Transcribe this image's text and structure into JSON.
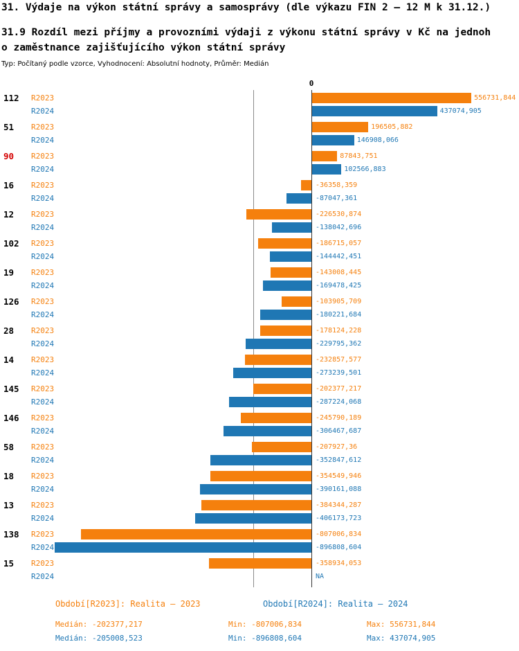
{
  "title": "31. Výdaje na výkon státní správy a samosprávy (dle výkazu FIN 2 – 12 M k 31.12.)",
  "subtitle_lines": [
    "31.9 Rozdíl mezi příjmy a provozními výdaji z výkonu státní správy v Kč na jednoh",
    "o zaměstnance zajišťujícího výkon státní správy"
  ],
  "meta": "Typ: Počítaný podle vzorce, Vyhodnocení: Absolutní hodnoty, Průměr: Medián",
  "axis": {
    "zero_label": "0"
  },
  "colors": {
    "r2023": "#f5800d",
    "r2024": "#1f77b4",
    "category": "#000000",
    "highlight_category": "#d40000",
    "zero_line": "#333333",
    "median_line": "#8a8a8a"
  },
  "chart_data": {
    "type": "bar",
    "orientation": "horizontal",
    "title": "31.9 Rozdíl mezi příjmy a provozními výdaji z výkonu státní správy v Kč na jednoho zaměstnance zajišťujícího výkon státní správy",
    "xlim": [
      -950000,
      620000
    ],
    "median_line_value": -202377.217,
    "series": [
      {
        "name": "R2023",
        "color": "#f5800d"
      },
      {
        "name": "R2024",
        "color": "#1f77b4"
      }
    ],
    "groups": [
      {
        "category": "112",
        "highlight": false,
        "values": [
          556731.844,
          437074.905
        ],
        "labels": [
          "556731,844",
          "437074,905"
        ]
      },
      {
        "category": "51",
        "highlight": false,
        "values": [
          196505.882,
          146908.066
        ],
        "labels": [
          "196505,882",
          "146908,066"
        ]
      },
      {
        "category": "90",
        "highlight": true,
        "values": [
          87843.751,
          102566.883
        ],
        "labels": [
          "87843,751",
          "102566,883"
        ]
      },
      {
        "category": "16",
        "highlight": false,
        "values": [
          -36358.359,
          -87047.361
        ],
        "labels": [
          "-36358,359",
          "-87047,361"
        ]
      },
      {
        "category": "12",
        "highlight": false,
        "values": [
          -226530.874,
          -138042.696
        ],
        "labels": [
          "-226530,874",
          "-138042,696"
        ]
      },
      {
        "category": "102",
        "highlight": false,
        "values": [
          -186715.057,
          -144442.451
        ],
        "labels": [
          "-186715,057",
          "-144442,451"
        ]
      },
      {
        "category": "19",
        "highlight": false,
        "values": [
          -143008.445,
          -169478.425
        ],
        "labels": [
          "-143008,445",
          "-169478,425"
        ]
      },
      {
        "category": "126",
        "highlight": false,
        "values": [
          -103905.709,
          -180221.684
        ],
        "labels": [
          "-103905,709",
          "-180221,684"
        ]
      },
      {
        "category": "28",
        "highlight": false,
        "values": [
          -178124.228,
          -229795.362
        ],
        "labels": [
          "-178124,228",
          "-229795,362"
        ]
      },
      {
        "category": "14",
        "highlight": false,
        "values": [
          -232857.577,
          -273239.501
        ],
        "labels": [
          "-232857,577",
          "-273239,501"
        ]
      },
      {
        "category": "145",
        "highlight": false,
        "values": [
          -202377.217,
          -287224.068
        ],
        "labels": [
          "-202377,217",
          "-287224,068"
        ]
      },
      {
        "category": "146",
        "highlight": false,
        "values": [
          -245790.189,
          -306467.687
        ],
        "labels": [
          "-245790,189",
          "-306467,687"
        ]
      },
      {
        "category": "58",
        "highlight": false,
        "values": [
          -207927.36,
          -352847.612
        ],
        "labels": [
          "-207927,36",
          "-352847,612"
        ]
      },
      {
        "category": "18",
        "highlight": false,
        "values": [
          -354549.946,
          -390161.088
        ],
        "labels": [
          "-354549,946",
          "-390161,088"
        ]
      },
      {
        "category": "13",
        "highlight": false,
        "values": [
          -384344.287,
          -406173.723
        ],
        "labels": [
          "-384344,287",
          "-406173,723"
        ]
      },
      {
        "category": "138",
        "highlight": false,
        "values": [
          -807006.834,
          -896808.604
        ],
        "labels": [
          "-807006,834",
          "-896808,604"
        ]
      },
      {
        "category": "15",
        "highlight": false,
        "values": [
          -358934.053,
          null
        ],
        "labels": [
          "-358934,053",
          "NA"
        ]
      }
    ]
  },
  "legend": [
    {
      "label": "Období[R2023]: Realita – 2023"
    },
    {
      "label": "Období[R2024]: Realita – 2024"
    }
  ],
  "stats": [
    {
      "median": "Medián: -202377,217",
      "min": "Min: -807006,834",
      "max": "Max: 556731,844"
    },
    {
      "median": "Medián: -205008,523",
      "min": "Min: -896808,604",
      "max": "Max: 437074,905"
    }
  ]
}
